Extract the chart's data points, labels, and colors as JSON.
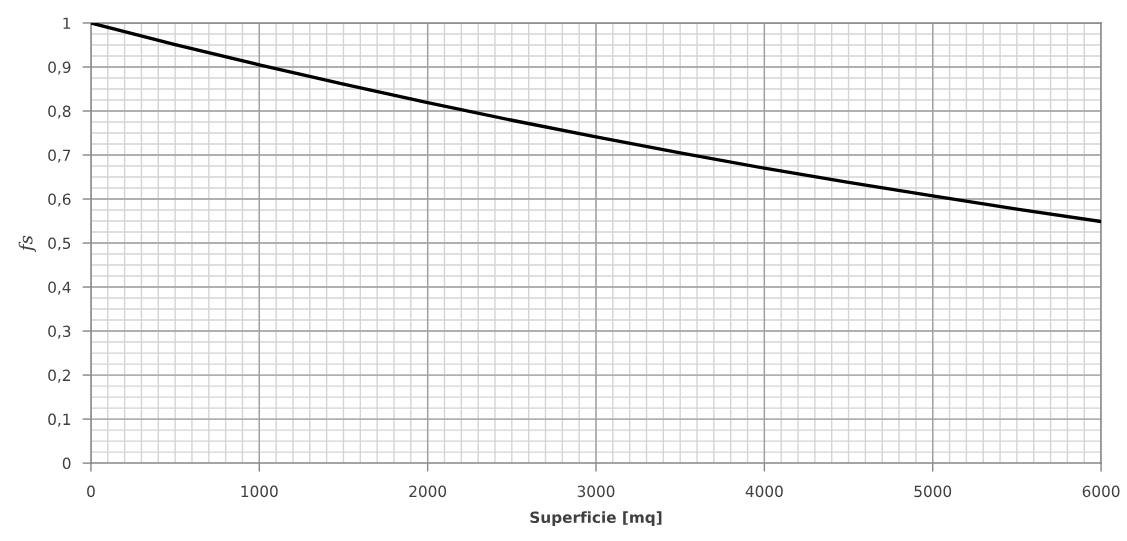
{
  "chart_data": {
    "type": "line",
    "xlabel": "Superficie [mq]",
    "ylabel": "fs",
    "x": [
      0,
      500,
      1000,
      1500,
      2000,
      2500,
      3000,
      3500,
      4000,
      4500,
      5000,
      5500,
      6000
    ],
    "series": [
      {
        "color": "#000000",
        "values": [
          1.0,
          0.951,
          0.905,
          0.861,
          0.819,
          0.779,
          0.741,
          0.705,
          0.67,
          0.638,
          0.607,
          0.577,
          0.549
        ]
      }
    ],
    "xlim": [
      0,
      6000
    ],
    "xticks": [
      0,
      1000,
      2000,
      3000,
      4000,
      5000,
      6000
    ],
    "ylim": [
      0,
      1
    ],
    "yticks": [
      0,
      {
        "value": 0.1,
        "label": "0,1"
      },
      {
        "value": 0.2,
        "label": "0,2"
      },
      {
        "value": 0.3,
        "label": "0,3"
      },
      {
        "value": 0.4,
        "label": "0,4"
      },
      {
        "value": 0.5,
        "label": "0,5"
      },
      {
        "value": 0.6,
        "label": "0,6"
      },
      {
        "value": 0.7,
        "label": "0,7"
      },
      {
        "value": 0.8,
        "label": "0,8"
      },
      {
        "value": 0.9,
        "label": "0,9"
      },
      1
    ],
    "grid": true,
    "marker": "none",
    "line_style": "solid"
  }
}
